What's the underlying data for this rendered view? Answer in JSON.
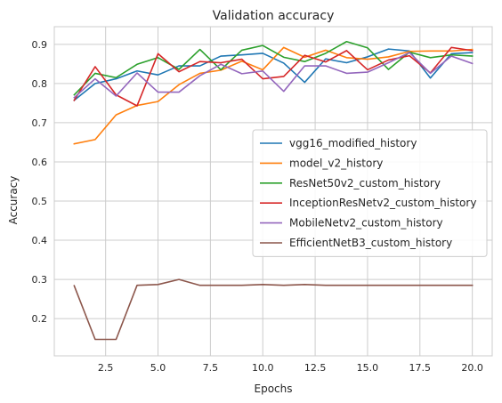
{
  "chart_data": {
    "type": "line",
    "title": "Validation accuracy",
    "xlabel": "Epochs",
    "ylabel": "Accuracy",
    "xlim": [
      0.05,
      20.95
    ],
    "ylim": [
      0.105,
      0.945
    ],
    "xticks": [
      2.5,
      5.0,
      7.5,
      10.0,
      12.5,
      15.0,
      17.5,
      20.0
    ],
    "xtick_labels": [
      "2.5",
      "5.0",
      "7.5",
      "10.0",
      "12.5",
      "15.0",
      "17.5",
      "20.0"
    ],
    "yticks": [
      0.2,
      0.3,
      0.4,
      0.5,
      0.6,
      0.7,
      0.8,
      0.9
    ],
    "ytick_labels": [
      "0.2",
      "0.3",
      "0.4",
      "0.5",
      "0.6",
      "0.7",
      "0.8",
      "0.9"
    ],
    "grid": true,
    "legend_position": "center-right",
    "x": [
      1,
      2,
      3,
      4,
      5,
      6,
      7,
      8,
      9,
      10,
      11,
      12,
      13,
      14,
      15,
      16,
      17,
      18,
      19,
      20
    ],
    "series": [
      {
        "name": "vgg16_modified_history",
        "color": "#1f77b4",
        "values": [
          0.757,
          0.8,
          0.812,
          0.832,
          0.822,
          0.845,
          0.845,
          0.87,
          0.873,
          0.877,
          0.852,
          0.803,
          0.863,
          0.853,
          0.868,
          0.888,
          0.883,
          0.814,
          0.876,
          0.879
        ]
      },
      {
        "name": "model_v2_history",
        "color": "#ff7f0e",
        "values": [
          0.646,
          0.657,
          0.72,
          0.744,
          0.754,
          0.797,
          0.826,
          0.834,
          0.857,
          0.835,
          0.892,
          0.867,
          0.885,
          0.866,
          0.862,
          0.868,
          0.882,
          0.883,
          0.883,
          0.887
        ]
      },
      {
        "name": "ResNet50v2_custom_history",
        "color": "#2ca02c",
        "values": [
          0.771,
          0.826,
          0.815,
          0.849,
          0.866,
          0.836,
          0.887,
          0.835,
          0.885,
          0.897,
          0.867,
          0.856,
          0.877,
          0.907,
          0.891,
          0.836,
          0.88,
          0.866,
          0.873,
          0.87
        ]
      },
      {
        "name": "InceptionResNetv2_custom_history",
        "color": "#d62728",
        "values": [
          0.757,
          0.843,
          0.771,
          0.743,
          0.876,
          0.83,
          0.856,
          0.853,
          0.862,
          0.812,
          0.818,
          0.872,
          0.855,
          0.884,
          0.835,
          0.86,
          0.871,
          0.827,
          0.892,
          0.884
        ]
      },
      {
        "name": "MobileNetv2_custom_history",
        "color": "#9467bd",
        "values": [
          0.764,
          0.812,
          0.768,
          0.827,
          0.778,
          0.778,
          0.82,
          0.849,
          0.825,
          0.832,
          0.78,
          0.845,
          0.845,
          0.826,
          0.829,
          0.853,
          0.879,
          0.826,
          0.87,
          0.851
        ]
      },
      {
        "name": "EfficientNetB3_custom_history",
        "color": "#8c564b",
        "values": [
          0.284,
          0.147,
          0.147,
          0.285,
          0.287,
          0.3,
          0.285,
          0.285,
          0.285,
          0.287,
          0.285,
          0.287,
          0.285,
          0.285,
          0.285,
          0.285,
          0.285,
          0.285,
          0.285,
          0.285
        ]
      }
    ]
  }
}
